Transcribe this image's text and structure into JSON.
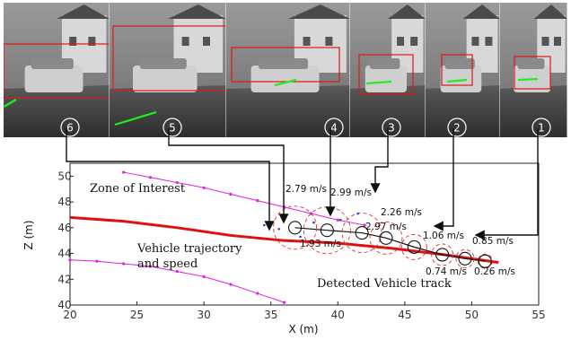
{
  "frames": [
    {
      "num": "6"
    },
    {
      "num": "5"
    },
    {
      "num": "4"
    },
    {
      "num": "3"
    },
    {
      "num": "2"
    },
    {
      "num": "1"
    }
  ],
  "annotations": {
    "zone": "Zone of Interest",
    "trajectory_line1": "Vehicle trajectory",
    "trajectory_line2": "and speed",
    "track": "Detected Vehicle track"
  },
  "speeds": [
    {
      "label": "2.79 m/s",
      "x": 37.0,
      "y": 45.9
    },
    {
      "label": "2.99 m/s",
      "x": 39.3,
      "y": 45.8
    },
    {
      "label": "2.26 m/s",
      "x": 41.8,
      "y": 45.6
    },
    {
      "label": "1.93 m/s",
      "x": 36.5,
      "y": 45.5
    },
    {
      "label": "2.97 m/s",
      "x": 43.5,
      "y": 45.2
    },
    {
      "label": "1.06 m/s",
      "x": 45.7,
      "y": 44.5
    },
    {
      "label": "0.85 m/s",
      "x": 49.0,
      "y": 43.9
    },
    {
      "label": "0.74 m/s",
      "x": 47.8,
      "y": 43.7
    },
    {
      "label": "0.26 m/s",
      "x": 51.0,
      "y": 43.4
    }
  ],
  "chart_data": {
    "type": "scatter",
    "xlabel": "X (m)",
    "ylabel": "Z (m)",
    "xlim": [
      20,
      55
    ],
    "ylim": [
      40,
      51
    ],
    "xticks": [
      20,
      25,
      30,
      35,
      40,
      45,
      50,
      55
    ],
    "yticks": [
      40,
      42,
      44,
      46,
      48,
      50
    ],
    "series": [
      {
        "role": "zone-upper-boundary",
        "color": "#e020e0",
        "x": [
          24,
          26,
          28,
          30,
          32,
          34,
          36,
          38,
          40,
          42
        ],
        "y": [
          50.3,
          49.9,
          49.5,
          49.1,
          48.6,
          48.1,
          47.6,
          47.1,
          46.6,
          46.2
        ]
      },
      {
        "role": "zone-lower-boundary",
        "color": "#e020e0",
        "x": [
          20,
          22,
          24,
          26,
          28,
          30,
          32,
          34,
          36
        ],
        "y": [
          43.5,
          43.4,
          43.2,
          43.0,
          42.6,
          42.2,
          41.6,
          40.9,
          40.2
        ]
      },
      {
        "role": "vehicle-trajectory",
        "color": "#e01010",
        "x": [
          20,
          24,
          28,
          32,
          36,
          40,
          44,
          48,
          52
        ],
        "y": [
          46.8,
          46.5,
          46.0,
          45.4,
          45.0,
          44.8,
          44.4,
          43.9,
          43.3
        ]
      },
      {
        "role": "detected-track",
        "color": "#111111",
        "x": [
          36.8,
          39.2,
          41.8,
          43.6,
          45.7,
          47.8,
          49.5,
          51.0
        ],
        "y": [
          46.0,
          45.8,
          45.6,
          45.2,
          44.5,
          43.9,
          43.6,
          43.4
        ]
      }
    ]
  }
}
